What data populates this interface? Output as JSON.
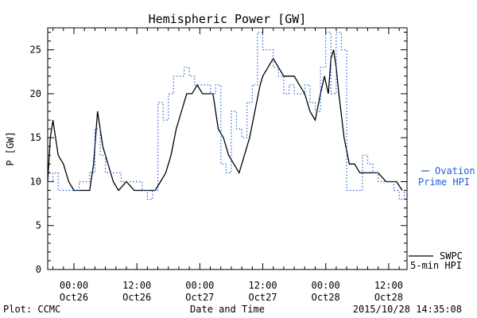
{
  "chart_data": {
    "type": "line",
    "title": "Hemispheric Power [GW]",
    "ylabel": "P [GW]",
    "xlabel": "Date and Time",
    "ylim": [
      0,
      27.5
    ],
    "xlim": [
      "2015-10-25 19:00",
      "2015-10-28 15:30"
    ],
    "grid": false,
    "y_ticks": [
      "0",
      "5",
      "10",
      "15",
      "20",
      "25"
    ],
    "x_ticks": [
      {
        "time": "00:00",
        "date": "Oct26"
      },
      {
        "time": "12:00",
        "date": "Oct26"
      },
      {
        "time": "00:00",
        "date": "Oct27"
      },
      {
        "time": "12:00",
        "date": "Oct27"
      },
      {
        "time": "00:00",
        "date": "Oct28"
      },
      {
        "time": "12:00",
        "date": "Oct28"
      }
    ],
    "series": [
      {
        "name": "SWPC 5-min HPI",
        "color": "#000000",
        "style": "solid",
        "x": [
          "2015-10-25 19:00",
          "2015-10-25 19:30",
          "2015-10-25 20:00",
          "2015-10-25 20:30",
          "2015-10-25 21:00",
          "2015-10-25 22:00",
          "2015-10-25 23:00",
          "2015-10-26 00:00",
          "2015-10-26 01:00",
          "2015-10-26 02:00",
          "2015-10-26 03:00",
          "2015-10-26 03:45",
          "2015-10-26 04:30",
          "2015-10-26 05:30",
          "2015-10-26 06:30",
          "2015-10-26 07:30",
          "2015-10-26 08:30",
          "2015-10-26 10:00",
          "2015-10-26 11:30",
          "2015-10-26 13:00",
          "2015-10-26 14:00",
          "2015-10-26 15:30",
          "2015-10-26 16:30",
          "2015-10-26 17:30",
          "2015-10-26 18:30",
          "2015-10-26 19:30",
          "2015-10-26 20:30",
          "2015-10-26 21:30",
          "2015-10-26 22:30",
          "2015-10-26 23:30",
          "2015-10-27 00:30",
          "2015-10-27 01:30",
          "2015-10-27 02:30",
          "2015-10-27 03:30",
          "2015-10-27 04:30",
          "2015-10-27 05:30",
          "2015-10-27 06:30",
          "2015-10-27 07:30",
          "2015-10-27 08:30",
          "2015-10-27 09:30",
          "2015-10-27 10:30",
          "2015-10-27 11:30",
          "2015-10-27 12:00",
          "2015-10-27 13:00",
          "2015-10-27 14:00",
          "2015-10-27 15:00",
          "2015-10-27 16:00",
          "2015-10-27 17:00",
          "2015-10-27 18:00",
          "2015-10-27 19:00",
          "2015-10-27 20:00",
          "2015-10-27 21:00",
          "2015-10-27 22:00",
          "2015-10-27 23:00",
          "2015-10-27 23:45",
          "2015-10-28 00:30",
          "2015-10-28 01:00",
          "2015-10-28 01:30",
          "2015-10-28 02:00",
          "2015-10-28 02:30",
          "2015-10-28 03:30",
          "2015-10-28 04:30",
          "2015-10-28 05:30",
          "2015-10-28 06:30",
          "2015-10-28 07:30",
          "2015-10-28 08:30",
          "2015-10-28 10:00",
          "2015-10-28 11:30",
          "2015-10-28 12:30",
          "2015-10-28 13:30",
          "2015-10-28 14:35"
        ],
        "y": [
          10,
          15,
          17,
          15,
          13,
          12,
          10,
          9,
          9,
          9,
          9,
          12,
          18,
          14,
          12,
          10,
          9,
          10,
          9,
          9,
          9,
          9,
          10,
          11,
          13,
          16,
          18,
          20,
          20,
          21,
          20,
          20,
          20,
          16,
          15,
          13,
          12,
          11,
          13,
          15,
          18,
          21,
          22,
          23,
          24,
          23,
          22,
          22,
          22,
          21,
          20,
          18,
          17,
          20,
          22,
          20,
          24,
          25,
          23,
          20,
          15,
          12,
          12,
          11,
          11,
          11,
          11,
          10,
          10,
          10,
          9
        ]
      },
      {
        "name": "Ovation Prime HPI",
        "color": "#1f5fd6",
        "style": "dashed",
        "x": [
          "2015-10-25 19:00",
          "2015-10-25 20:00",
          "2015-10-25 21:00",
          "2015-10-26 00:00",
          "2015-10-26 01:00",
          "2015-10-26 02:00",
          "2015-10-26 03:00",
          "2015-10-26 04:00",
          "2015-10-26 05:00",
          "2015-10-26 06:00",
          "2015-10-26 07:00",
          "2015-10-26 09:00",
          "2015-10-26 10:00",
          "2015-10-26 13:00",
          "2015-10-26 14:00",
          "2015-10-26 15:00",
          "2015-10-26 16:00",
          "2015-10-26 17:00",
          "2015-10-26 18:00",
          "2015-10-26 19:00",
          "2015-10-26 20:00",
          "2015-10-26 21:00",
          "2015-10-26 22:00",
          "2015-10-26 23:00",
          "2015-10-27 00:00",
          "2015-10-27 01:00",
          "2015-10-27 02:00",
          "2015-10-27 03:00",
          "2015-10-27 04:00",
          "2015-10-27 05:00",
          "2015-10-27 06:00",
          "2015-10-27 07:00",
          "2015-10-27 08:00",
          "2015-10-27 09:00",
          "2015-10-27 10:00",
          "2015-10-27 11:00",
          "2015-10-27 12:00",
          "2015-10-27 13:00",
          "2015-10-27 14:00",
          "2015-10-27 15:00",
          "2015-10-27 16:00",
          "2015-10-27 17:00",
          "2015-10-27 18:00",
          "2015-10-27 19:00",
          "2015-10-27 20:00",
          "2015-10-27 21:00",
          "2015-10-27 22:00",
          "2015-10-27 23:00",
          "2015-10-28 00:00",
          "2015-10-28 01:00",
          "2015-10-28 02:00",
          "2015-10-28 03:00",
          "2015-10-28 04:00",
          "2015-10-28 05:00",
          "2015-10-28 06:00",
          "2015-10-28 07:00",
          "2015-10-28 08:00",
          "2015-10-28 09:00",
          "2015-10-28 10:00",
          "2015-10-28 12:00",
          "2015-10-28 13:00",
          "2015-10-28 14:00",
          "2015-10-28 15:00"
        ],
        "y": [
          10,
          11,
          9,
          9,
          10,
          10,
          11,
          16,
          13,
          11,
          11,
          10,
          10,
          9,
          8,
          9,
          19,
          17,
          20,
          22,
          22,
          23,
          22,
          21,
          21,
          21,
          20,
          21,
          12,
          11,
          18,
          16,
          15,
          19,
          21,
          27,
          25,
          25,
          23,
          22,
          20,
          21,
          20,
          20,
          21,
          19,
          18,
          23,
          27,
          20,
          27,
          25,
          9,
          9,
          9,
          13,
          12,
          11,
          10,
          10,
          9,
          8,
          9
        ]
      }
    ]
  },
  "legend": {
    "ovation_line1": "Ovation",
    "ovation_line2": "Prime HPI",
    "swpc_line1": "SWPC",
    "swpc_line2": "5-min HPI"
  },
  "footer": {
    "plot_credit": "Plot: CCMC",
    "timestamp": "2015/10/28 14:35:08"
  }
}
